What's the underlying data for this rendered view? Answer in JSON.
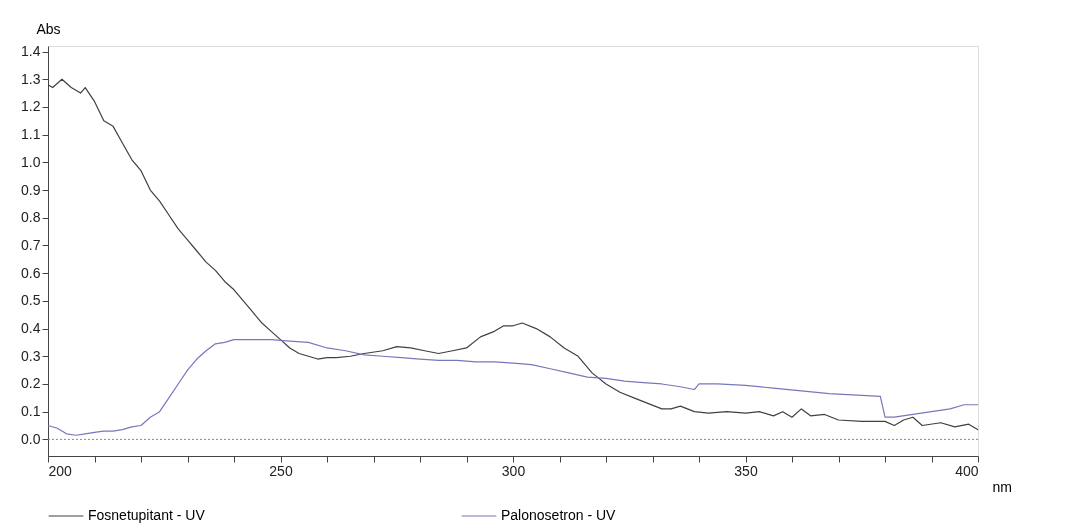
{
  "chart_data": {
    "type": "line",
    "xlabel": "nm",
    "ylabel": "Abs",
    "xlim": [
      200,
      400
    ],
    "ylim": [
      -0.06,
      1.42
    ],
    "xticks": [
      200,
      {
        "value": 210,
        "label": null
      },
      {
        "value": 220,
        "label": null
      },
      {
        "value": 230,
        "label": null
      },
      {
        "value": 240,
        "label": null
      },
      250,
      {
        "value": 260,
        "label": null
      },
      {
        "value": 270,
        "label": null
      },
      {
        "value": 280,
        "label": null
      },
      {
        "value": 290,
        "label": null
      },
      300,
      {
        "value": 310,
        "label": null
      },
      {
        "value": 320,
        "label": null
      },
      {
        "value": 330,
        "label": null
      },
      {
        "value": 340,
        "label": null
      },
      350,
      {
        "value": 360,
        "label": null
      },
      {
        "value": 370,
        "label": null
      },
      {
        "value": 380,
        "label": null
      },
      {
        "value": 390,
        "label": null
      },
      400
    ],
    "yticks": [
      {
        "value": 0,
        "label": "0.0"
      },
      0.1,
      0.2,
      0.3,
      0.4,
      0.5,
      0.6,
      0.7,
      0.8,
      0.9,
      {
        "value": 1,
        "label": "1.0"
      },
      1.1,
      1.2,
      1.3,
      1.4
    ],
    "grid": false,
    "legend": "bottom",
    "marker": "none",
    "line_style": "solid",
    "ref_lines": [
      {
        "axis": "y",
        "value": 0,
        "label": null,
        "color": "#888888",
        "line_style": "dotted"
      }
    ],
    "series": [
      {
        "name": "Fosnetupitant  - UV",
        "color": "#404040",
        "x": [
          200,
          201,
          203,
          205,
          207,
          208,
          210,
          212,
          214,
          216,
          218,
          220,
          222,
          224,
          226,
          228,
          230,
          232,
          234,
          236,
          238,
          240,
          242,
          244,
          246,
          248,
          250,
          252,
          254,
          256,
          258,
          260,
          262,
          265,
          268,
          272,
          275,
          278,
          281,
          284,
          287,
          290,
          293,
          296,
          298,
          300,
          302,
          305,
          308,
          311,
          314,
          317,
          320,
          323,
          326,
          329,
          332,
          334,
          336,
          339,
          342,
          346,
          350,
          353,
          356,
          358,
          360,
          362,
          364,
          367,
          370,
          375,
          380,
          382,
          384,
          386,
          388,
          392,
          395,
          398,
          400
        ],
        "values": [
          1.28,
          1.27,
          1.3,
          1.27,
          1.25,
          1.27,
          1.22,
          1.15,
          1.13,
          1.07,
          1.01,
          0.97,
          0.9,
          0.86,
          0.81,
          0.76,
          0.72,
          0.68,
          0.64,
          0.61,
          0.57,
          0.54,
          0.5,
          0.46,
          0.42,
          0.39,
          0.36,
          0.33,
          0.31,
          0.3,
          0.29,
          0.295,
          0.295,
          0.3,
          0.31,
          0.32,
          0.335,
          0.33,
          0.32,
          0.31,
          0.32,
          0.33,
          0.37,
          0.39,
          0.41,
          0.41,
          0.42,
          0.4,
          0.37,
          0.33,
          0.3,
          0.24,
          0.2,
          0.17,
          0.15,
          0.13,
          0.11,
          0.11,
          0.12,
          0.1,
          0.095,
          0.1,
          0.095,
          0.1,
          0.085,
          0.1,
          0.08,
          0.11,
          0.085,
          0.09,
          0.07,
          0.065,
          0.065,
          0.05,
          0.07,
          0.08,
          0.05,
          0.06,
          0.045,
          0.055,
          0.035
        ]
      },
      {
        "name": "Palonosetron - UV",
        "color": "#7777bb",
        "x": [
          200,
          202,
          204,
          206,
          208,
          210,
          212,
          214,
          216,
          218,
          220,
          222,
          224,
          226,
          228,
          230,
          232,
          234,
          236,
          238,
          240,
          244,
          248,
          252,
          256,
          260,
          264,
          268,
          272,
          276,
          280,
          284,
          288,
          292,
          296,
          300,
          304,
          308,
          312,
          316,
          320,
          324,
          328,
          332,
          336,
          339,
          340,
          344,
          350,
          356,
          362,
          368,
          374,
          379,
          380,
          382,
          386,
          390,
          394,
          397,
          400
        ],
        "values": [
          0.05,
          0.04,
          0.02,
          0.015,
          0.02,
          0.025,
          0.03,
          0.03,
          0.035,
          0.045,
          0.05,
          0.08,
          0.1,
          0.15,
          0.2,
          0.25,
          0.29,
          0.32,
          0.345,
          0.35,
          0.36,
          0.36,
          0.36,
          0.355,
          0.35,
          0.33,
          0.32,
          0.305,
          0.3,
          0.295,
          0.29,
          0.285,
          0.285,
          0.28,
          0.28,
          0.275,
          0.27,
          0.255,
          0.24,
          0.225,
          0.22,
          0.21,
          0.205,
          0.2,
          0.19,
          0.18,
          0.2,
          0.2,
          0.195,
          0.185,
          0.175,
          0.165,
          0.16,
          0.155,
          0.08,
          0.08,
          0.09,
          0.1,
          0.11,
          0.125,
          0.125
        ]
      }
    ]
  }
}
